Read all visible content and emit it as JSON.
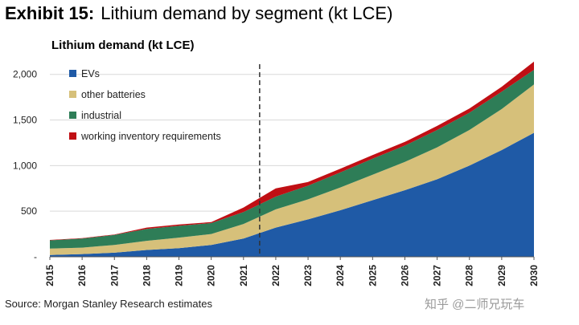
{
  "exhibit": {
    "label": "Exhibit 15:",
    "title": "Lithium demand by segment (kt LCE)"
  },
  "chart_title": "Lithium demand (kt LCE)",
  "source": "Source: Morgan Stanley Research estimates",
  "watermark": "知乎 @二师兄玩车",
  "chart_data": {
    "type": "area",
    "stacked": true,
    "title": "Lithium demand (kt LCE)",
    "xlabel": "",
    "ylabel": "",
    "x": [
      "2015",
      "2016",
      "2017",
      "2018",
      "2019",
      "2020",
      "2021",
      "2022",
      "2023",
      "2024",
      "2025",
      "2026",
      "2027",
      "2028",
      "2029",
      "2030"
    ],
    "ylim": [
      0,
      2200
    ],
    "yticks": [
      0,
      500,
      1000,
      1500,
      2000
    ],
    "ytick_labels": [
      "-",
      "500",
      "1,000",
      "1,500",
      "2,000"
    ],
    "grid": true,
    "legend_position": "top-left",
    "divider_after": "2021",
    "series": [
      {
        "name": "EVs",
        "color": "#1f5aa6",
        "values": [
          20,
          30,
          45,
          75,
          95,
          130,
          200,
          320,
          410,
          510,
          620,
          730,
          850,
          1000,
          1170,
          1360
        ]
      },
      {
        "name": "other batteries",
        "color": "#d6c07a",
        "values": [
          70,
          70,
          85,
          100,
          115,
          120,
          160,
          200,
          220,
          250,
          280,
          310,
          350,
          390,
          450,
          530
        ]
      },
      {
        "name": "industrial",
        "color": "#2e7d57",
        "values": [
          90,
          100,
          110,
          130,
          130,
          120,
          130,
          140,
          150,
          165,
          175,
          180,
          190,
          190,
          190,
          160
        ]
      },
      {
        "name": "working inventory requirements",
        "color": "#c00f14",
        "values": [
          5,
          5,
          5,
          15,
          15,
          10,
          50,
          90,
          40,
          40,
          40,
          40,
          45,
          45,
          55,
          90
        ]
      }
    ]
  }
}
